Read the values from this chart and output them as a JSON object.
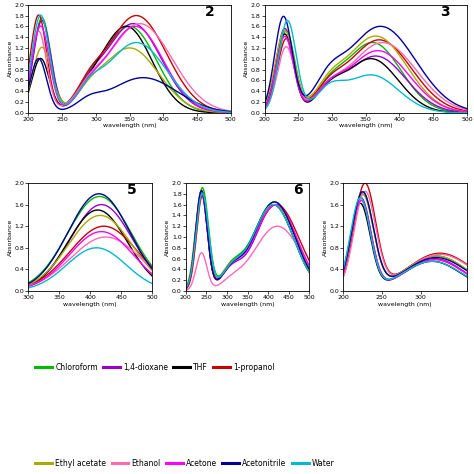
{
  "colors": {
    "chloroform": "#00bb00",
    "dioxane": "#9900cc",
    "THF": "#000000",
    "propanol": "#cc0000",
    "ethylacetate": "#aaaa00",
    "ethanol": "#ff69b4",
    "acetone": "#ff00ff",
    "acetonitrile": "#000099",
    "water": "#00bbcc"
  },
  "xlabel": "wavelength (nm)",
  "ylabel": "Absorbance",
  "background": "#ffffff",
  "lw": 1.0,
  "legend_row1": [
    [
      "Chloroform",
      "#00bb00"
    ],
    [
      "1,4-dioxane",
      "#9900cc"
    ],
    [
      "THF",
      "#000000"
    ],
    [
      "1-propanol",
      "#cc0000"
    ]
  ],
  "legend_row2": [
    [
      "Ethyl acetate",
      "#aaaa00"
    ],
    [
      "Ethanol",
      "#ff69b4"
    ],
    [
      "Acetone",
      "#ff00ff"
    ],
    [
      "Acetonitrile",
      "#000099"
    ],
    [
      "Water",
      "#00bbcc"
    ]
  ]
}
